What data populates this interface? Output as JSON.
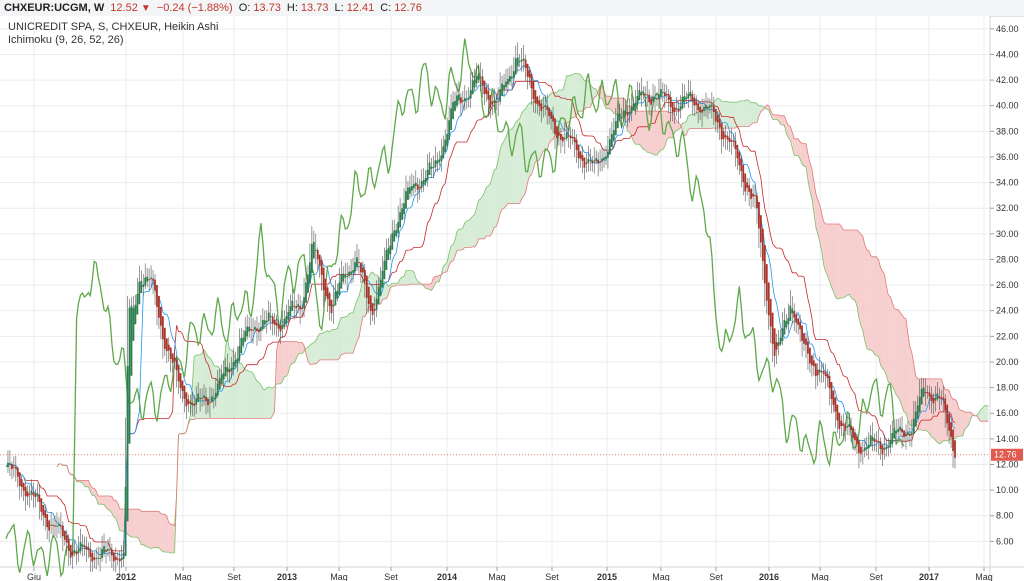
{
  "header": {
    "symbol": "CHXEUR:UCGM, W",
    "last": "12.52",
    "change": "−0.24 (−1.88%)",
    "open_label": "O:",
    "open": "13.73",
    "high_label": "H:",
    "high": "13.73",
    "low_label": "L:",
    "low": "12.41",
    "close_label": "C:",
    "close": "12.76"
  },
  "legend": {
    "title": "UNICREDIT SPA, S, CHXEUR, Heikin Ashi",
    "indicator": "Ichimoku (9, 26, 52, 26)"
  },
  "price_label": "12.76",
  "colors": {
    "up_candle": "#2e7d4f",
    "down_candle": "#a8342a",
    "tenkan": "#2196f3",
    "kijun": "#c62828",
    "chikou": "#5ea84a",
    "cloud_up": "#cfe9cf",
    "cloud_down": "#f6c5c5",
    "grid": "#e9ecef",
    "price_line": "#e05a4f"
  },
  "chart_data": {
    "type": "candlestick",
    "style": "Heikin Ashi",
    "timeframe": "weekly",
    "ylim": [
      4,
      47
    ],
    "y_ticks": [
      "6.00",
      "8.00",
      "10.00",
      "12.00",
      "14.00",
      "16.00",
      "18.00",
      "20.00",
      "22.00",
      "24.00",
      "26.00",
      "28.00",
      "30.00",
      "32.00",
      "34.00",
      "36.00",
      "38.00",
      "40.00",
      "42.00",
      "44.00",
      "46.00"
    ],
    "x_ticks": [
      {
        "label": "Giu",
        "bold": false
      },
      {
        "label": "2012",
        "bold": true
      },
      {
        "label": "Mag",
        "bold": false
      },
      {
        "label": "Set",
        "bold": false
      },
      {
        "label": "2013",
        "bold": true
      },
      {
        "label": "Mag",
        "bold": false
      },
      {
        "label": "Set",
        "bold": false
      },
      {
        "label": "2014",
        "bold": true
      },
      {
        "label": "Mag",
        "bold": false
      },
      {
        "label": "Set",
        "bold": false
      },
      {
        "label": "2015",
        "bold": true
      },
      {
        "label": "Mag",
        "bold": false
      },
      {
        "label": "Set",
        "bold": false
      },
      {
        "label": "2016",
        "bold": true
      },
      {
        "label": "Mag",
        "bold": false
      },
      {
        "label": "Set",
        "bold": false
      },
      {
        "label": "2017",
        "bold": true
      },
      {
        "label": "Mag",
        "bold": false
      }
    ],
    "last_close": 12.76,
    "price_keypoints": [
      [
        0,
        11.8
      ],
      [
        8,
        10.5
      ],
      [
        22,
        7.5
      ],
      [
        34,
        5.3
      ],
      [
        50,
        4.9
      ],
      [
        60,
        5.0
      ],
      [
        62,
        24
      ],
      [
        64,
        23.5
      ],
      [
        68,
        27
      ],
      [
        74,
        26
      ],
      [
        80,
        22
      ],
      [
        88,
        18
      ],
      [
        96,
        16.5
      ],
      [
        108,
        18
      ],
      [
        116,
        20.5
      ],
      [
        126,
        23
      ],
      [
        138,
        23
      ],
      [
        150,
        24.5
      ],
      [
        156,
        29
      ],
      [
        166,
        24
      ],
      [
        172,
        27
      ],
      [
        178,
        28
      ],
      [
        186,
        24
      ],
      [
        192,
        27
      ],
      [
        198,
        31
      ],
      [
        208,
        34
      ],
      [
        218,
        35
      ],
      [
        228,
        40
      ],
      [
        240,
        42
      ],
      [
        250,
        40
      ],
      [
        260,
        44
      ],
      [
        272,
        40
      ],
      [
        278,
        38.5
      ],
      [
        288,
        37
      ],
      [
        300,
        35
      ],
      [
        316,
        40
      ],
      [
        330,
        41
      ],
      [
        340,
        40
      ],
      [
        350,
        40.5
      ],
      [
        362,
        39
      ],
      [
        372,
        36
      ],
      [
        382,
        32
      ],
      [
        392,
        20
      ],
      [
        400,
        25
      ],
      [
        406,
        21
      ],
      [
        416,
        19
      ],
      [
        426,
        15
      ],
      [
        434,
        13.5
      ],
      [
        446,
        13.5
      ],
      [
        456,
        14.5
      ],
      [
        462,
        15
      ],
      [
        468,
        18
      ],
      [
        476,
        17
      ],
      [
        484,
        13
      ]
    ]
  }
}
